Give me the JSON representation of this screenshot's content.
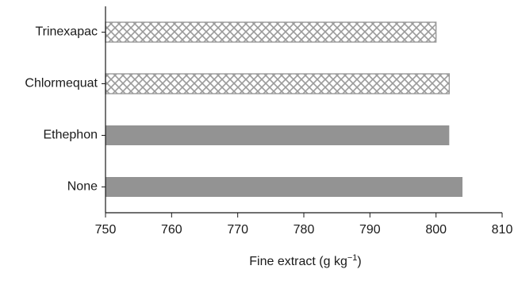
{
  "chart_data": {
    "type": "bar",
    "orientation": "horizontal",
    "title": "",
    "xlabel": "Fine extract (g kg",
    "xlabel_superscript": "−1",
    "xlabel_suffix": ")",
    "ylabel": "",
    "xlim": [
      750,
      810
    ],
    "xticks": [
      750,
      760,
      770,
      780,
      790,
      800,
      810
    ],
    "categories": [
      "Trinexapac",
      "Chlormequat",
      "Ethephon",
      "None"
    ],
    "values": [
      800,
      802,
      802,
      804
    ],
    "fills": [
      "crosshatch",
      "crosshatch",
      "solid",
      "solid"
    ],
    "grid": false,
    "legend": "none",
    "colors": {
      "solid": "#939393",
      "hatch_line": "#9a9a9a",
      "axis": "#1a1a1a"
    }
  }
}
